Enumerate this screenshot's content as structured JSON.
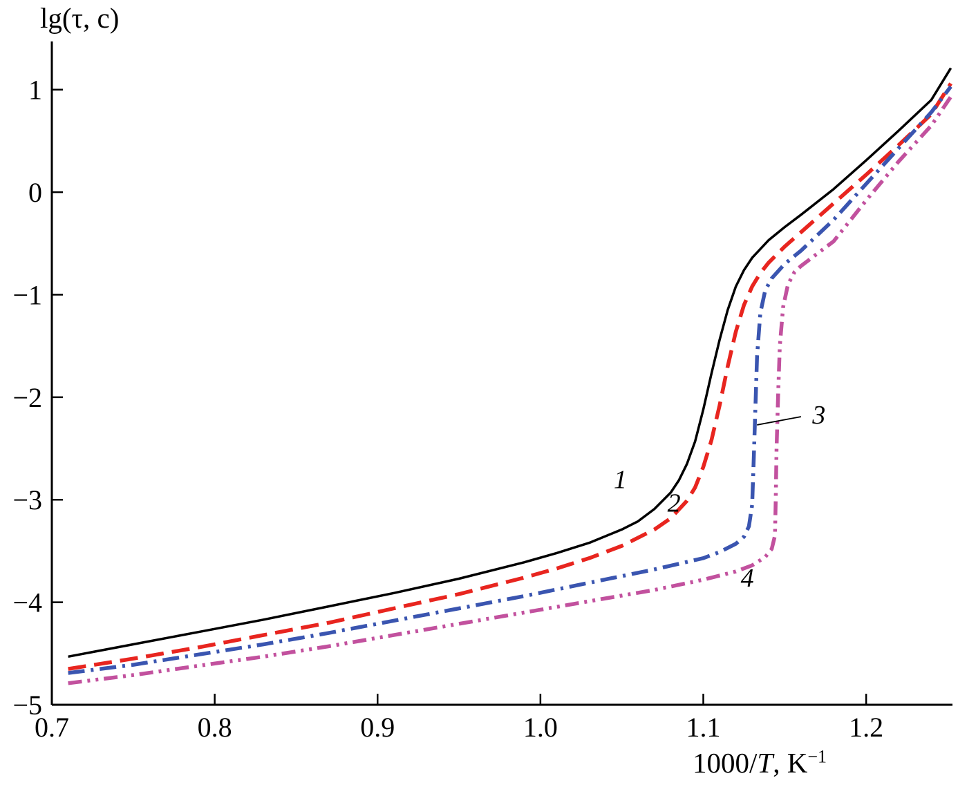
{
  "figure": {
    "ylabel_parts": {
      "pre": "lg(",
      "tau": "τ",
      "post": ", c)"
    },
    "xlabel_parts": {
      "pre": "1000/",
      "T": "T",
      "mid": ", K",
      "sup": "−1"
    }
  },
  "chart_data": {
    "type": "line",
    "title": "",
    "xlabel": "1000/T, K⁻¹",
    "ylabel": "lg(τ, c)",
    "xlim": [
      0.7,
      1.253
    ],
    "ylim": [
      -5,
      1.47
    ],
    "grid": false,
    "legend_position": "none (curves numbered 1–4 by in-plot labels)",
    "x_ticks": {
      "values": [
        0.7,
        0.8,
        0.9,
        1.0,
        1.1,
        1.2
      ],
      "labels": [
        "0.7",
        "0.8",
        "0.9",
        "1.0",
        "1.1",
        "1.2"
      ]
    },
    "y_ticks": {
      "values": [
        -5,
        -4,
        -3,
        -2,
        -1,
        0,
        1
      ],
      "labels": [
        "−5",
        "−4",
        "−3",
        "−2",
        "−1",
        "0",
        "1"
      ]
    },
    "series": [
      {
        "name": "1",
        "style": "solid",
        "color": "#000000",
        "width": 3.5,
        "points": [
          [
            0.71,
            -4.53
          ],
          [
            0.75,
            -4.41
          ],
          [
            0.79,
            -4.29
          ],
          [
            0.83,
            -4.17
          ],
          [
            0.87,
            -4.04
          ],
          [
            0.91,
            -3.91
          ],
          [
            0.95,
            -3.77
          ],
          [
            0.99,
            -3.61
          ],
          [
            1.01,
            -3.52
          ],
          [
            1.03,
            -3.42
          ],
          [
            1.05,
            -3.29
          ],
          [
            1.06,
            -3.21
          ],
          [
            1.07,
            -3.09
          ],
          [
            1.08,
            -2.93
          ],
          [
            1.085,
            -2.81
          ],
          [
            1.09,
            -2.65
          ],
          [
            1.095,
            -2.43
          ],
          [
            1.1,
            -2.12
          ],
          [
            1.105,
            -1.77
          ],
          [
            1.11,
            -1.44
          ],
          [
            1.115,
            -1.15
          ],
          [
            1.12,
            -0.92
          ],
          [
            1.125,
            -0.76
          ],
          [
            1.13,
            -0.64
          ],
          [
            1.14,
            -0.47
          ],
          [
            1.15,
            -0.34
          ],
          [
            1.16,
            -0.22
          ],
          [
            1.18,
            0.03
          ],
          [
            1.2,
            0.31
          ],
          [
            1.22,
            0.6
          ],
          [
            1.24,
            0.9
          ],
          [
            1.252,
            1.21
          ]
        ]
      },
      {
        "name": "2",
        "style": "dashed",
        "color": "#e8251f",
        "width": 5.5,
        "points": [
          [
            0.71,
            -4.65
          ],
          [
            0.75,
            -4.55
          ],
          [
            0.79,
            -4.44
          ],
          [
            0.83,
            -4.32
          ],
          [
            0.87,
            -4.2
          ],
          [
            0.91,
            -4.06
          ],
          [
            0.95,
            -3.92
          ],
          [
            0.99,
            -3.76
          ],
          [
            1.01,
            -3.67
          ],
          [
            1.03,
            -3.57
          ],
          [
            1.05,
            -3.45
          ],
          [
            1.07,
            -3.29
          ],
          [
            1.08,
            -3.18
          ],
          [
            1.09,
            -3.01
          ],
          [
            1.095,
            -2.88
          ],
          [
            1.1,
            -2.68
          ],
          [
            1.105,
            -2.42
          ],
          [
            1.11,
            -2.08
          ],
          [
            1.115,
            -1.7
          ],
          [
            1.12,
            -1.36
          ],
          [
            1.125,
            -1.1
          ],
          [
            1.13,
            -0.92
          ],
          [
            1.135,
            -0.79
          ],
          [
            1.14,
            -0.69
          ],
          [
            1.15,
            -0.53
          ],
          [
            1.16,
            -0.39
          ],
          [
            1.18,
            -0.11
          ],
          [
            1.2,
            0.17
          ],
          [
            1.22,
            0.46
          ],
          [
            1.24,
            0.76
          ],
          [
            1.252,
            1.06
          ]
        ]
      },
      {
        "name": "3",
        "style": "dash-dot",
        "color": "#3a55b0",
        "width": 5.5,
        "points": [
          [
            0.71,
            -4.69
          ],
          [
            0.75,
            -4.61
          ],
          [
            0.79,
            -4.51
          ],
          [
            0.83,
            -4.41
          ],
          [
            0.87,
            -4.3
          ],
          [
            0.91,
            -4.18
          ],
          [
            0.95,
            -4.06
          ],
          [
            0.99,
            -3.94
          ],
          [
            1.03,
            -3.81
          ],
          [
            1.07,
            -3.68
          ],
          [
            1.1,
            -3.57
          ],
          [
            1.11,
            -3.51
          ],
          [
            1.12,
            -3.43
          ],
          [
            1.125,
            -3.36
          ],
          [
            1.128,
            -3.26
          ],
          [
            1.13,
            -3.05
          ],
          [
            1.131,
            -2.6
          ],
          [
            1.132,
            -2.1
          ],
          [
            1.133,
            -1.6
          ],
          [
            1.135,
            -1.18
          ],
          [
            1.138,
            -0.96
          ],
          [
            1.142,
            -0.84
          ],
          [
            1.15,
            -0.7
          ],
          [
            1.16,
            -0.57
          ],
          [
            1.18,
            -0.27
          ],
          [
            1.2,
            0.08
          ],
          [
            1.22,
            0.43
          ],
          [
            1.24,
            0.78
          ],
          [
            1.252,
            1.03
          ]
        ]
      },
      {
        "name": "4",
        "style": "dash-dot-dot",
        "color": "#c2519e",
        "width": 5.5,
        "points": [
          [
            0.71,
            -4.79
          ],
          [
            0.75,
            -4.71
          ],
          [
            0.79,
            -4.62
          ],
          [
            0.83,
            -4.53
          ],
          [
            0.87,
            -4.43
          ],
          [
            0.91,
            -4.32
          ],
          [
            0.95,
            -4.21
          ],
          [
            0.99,
            -4.1
          ],
          [
            1.03,
            -3.99
          ],
          [
            1.07,
            -3.88
          ],
          [
            1.1,
            -3.78
          ],
          [
            1.12,
            -3.7
          ],
          [
            1.13,
            -3.64
          ],
          [
            1.138,
            -3.56
          ],
          [
            1.142,
            -3.48
          ],
          [
            1.144,
            -3.35
          ],
          [
            1.1445,
            -3.0
          ],
          [
            1.145,
            -2.5
          ],
          [
            1.146,
            -1.95
          ],
          [
            1.147,
            -1.5
          ],
          [
            1.149,
            -1.12
          ],
          [
            1.152,
            -0.9
          ],
          [
            1.156,
            -0.78
          ],
          [
            1.16,
            -0.72
          ],
          [
            1.17,
            -0.6
          ],
          [
            1.18,
            -0.48
          ],
          [
            1.2,
            -0.08
          ],
          [
            1.22,
            0.3
          ],
          [
            1.24,
            0.65
          ],
          [
            1.252,
            0.93
          ]
        ]
      }
    ],
    "annotations": [
      {
        "label": "1",
        "x": 1.049,
        "y": -2.8
      },
      {
        "label": "2",
        "x": 1.082,
        "y": -3.03
      },
      {
        "label": "3",
        "x": 1.171,
        "y": -2.17,
        "leader": {
          "x1": 1.16,
          "y1": -2.19,
          "x2": 1.133,
          "y2": -2.27
        }
      },
      {
        "label": "4",
        "x": 1.127,
        "y": -3.76
      }
    ]
  }
}
